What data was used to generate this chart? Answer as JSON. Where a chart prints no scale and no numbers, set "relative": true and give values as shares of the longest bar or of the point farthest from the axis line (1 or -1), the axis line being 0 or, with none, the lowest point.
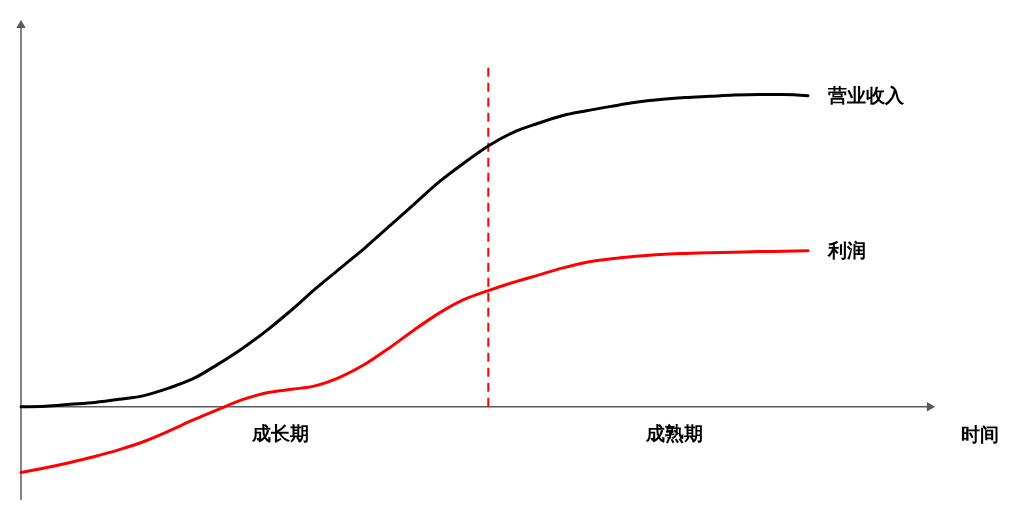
{
  "chart_data": {
    "type": "line",
    "relative": true,
    "xlabel": "时间",
    "line_style": "solid",
    "categories": [
      null,
      null,
      null,
      null,
      null,
      null,
      null,
      null,
      null,
      null,
      null,
      null,
      null,
      null,
      null,
      null,
      null,
      null,
      null,
      null,
      null,
      null,
      null,
      null,
      null,
      null,
      null,
      null,
      null,
      null,
      null,
      null,
      null,
      null,
      null,
      null,
      null,
      null
    ],
    "series": [
      {
        "name": "营业收入",
        "color": "#000000",
        "values": [
          0,
          0.002,
          0.008,
          0.014,
          0.024,
          0.036,
          0.06,
          0.09,
          0.136,
          0.187,
          0.245,
          0.31,
          0.38,
          0.445,
          0.51,
          0.58,
          0.65,
          0.72,
          0.78,
          0.835,
          0.878,
          0.907,
          0.932,
          0.948,
          0.962,
          0.975,
          0.984,
          0.99,
          0.994,
          0.998,
          1,
          1,
          0.996,
          null,
          null,
          null,
          null,
          null
        ]
      },
      {
        "name": "利润",
        "color": "#ff0000",
        "values": [
          -0.21,
          -0.195,
          -0.178,
          -0.159,
          -0.137,
          -0.111,
          -0.078,
          -0.042,
          -0.009,
          0.023,
          0.045,
          0.056,
          0.068,
          0.096,
          0.137,
          0.19,
          0.247,
          0.3,
          0.343,
          0.372,
          0.398,
          0.421,
          0.444,
          0.463,
          0.474,
          0.482,
          0.488,
          0.491,
          0.493,
          0.495,
          0.497,
          0.498,
          0.5,
          null,
          null,
          null,
          null,
          null
        ]
      }
    ],
    "annotations": [
      "成长期",
      "成熟期"
    ]
  }
}
